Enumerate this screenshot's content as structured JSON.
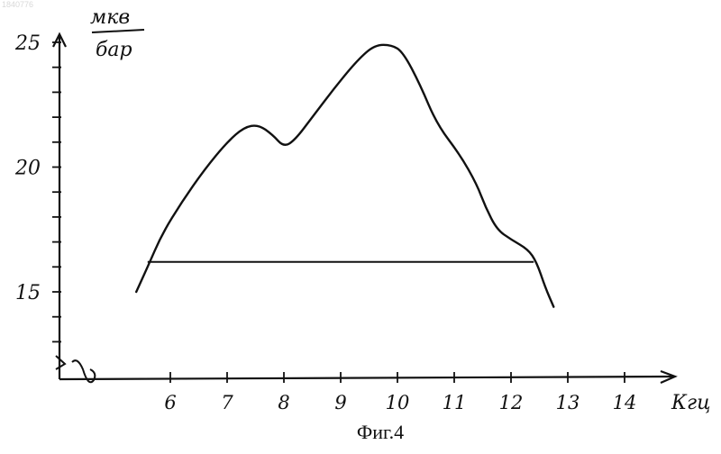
{
  "watermark": "1840776",
  "caption": "Фиг.4",
  "chart_data": {
    "type": "line",
    "xlabel": "Кгц",
    "ylabel_num": "мкв",
    "ylabel_den": "бар",
    "x_ticks": [
      6,
      7,
      8,
      9,
      10,
      11,
      12,
      13,
      14
    ],
    "y_ticks": [
      15,
      20,
      25
    ],
    "xlim": [
      4.2,
      15
    ],
    "ylim": [
      11.5,
      26
    ],
    "grid": false,
    "series": [
      {
        "points": [
          [
            5.4,
            15.0
          ],
          [
            5.6,
            16.0
          ],
          [
            5.85,
            17.3
          ],
          [
            6.2,
            18.6
          ],
          [
            6.6,
            19.9
          ],
          [
            7.0,
            21.0
          ],
          [
            7.3,
            21.6
          ],
          [
            7.55,
            21.7
          ],
          [
            7.8,
            21.3
          ],
          [
            8.0,
            20.8
          ],
          [
            8.2,
            21.1
          ],
          [
            8.5,
            22.0
          ],
          [
            8.9,
            23.2
          ],
          [
            9.3,
            24.3
          ],
          [
            9.6,
            24.9
          ],
          [
            9.9,
            24.9
          ],
          [
            10.1,
            24.6
          ],
          [
            10.4,
            23.3
          ],
          [
            10.7,
            21.7
          ],
          [
            11.1,
            20.5
          ],
          [
            11.4,
            19.3
          ],
          [
            11.55,
            18.4
          ],
          [
            11.75,
            17.5
          ],
          [
            12.0,
            17.1
          ],
          [
            12.3,
            16.7
          ],
          [
            12.45,
            16.2
          ],
          [
            12.6,
            15.2
          ],
          [
            12.75,
            14.4
          ]
        ]
      }
    ],
    "threshold": {
      "y": 16.2,
      "x_from": 5.6,
      "x_to": 12.4
    }
  }
}
